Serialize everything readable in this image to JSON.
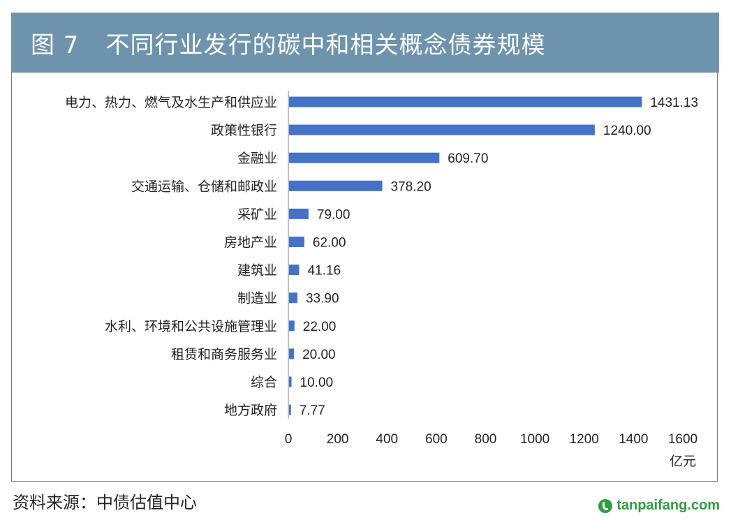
{
  "header": {
    "figure_number": "图 7",
    "title": "不同行业发行的碳中和相关概念债券规模"
  },
  "chart_data": {
    "type": "bar",
    "orientation": "horizontal",
    "categories": [
      "电力、热力、燃气及水生产和供应业",
      "政策性银行",
      "金融业",
      "交通运输、仓储和邮政业",
      "采矿业",
      "房地产业",
      "建筑业",
      "制造业",
      "水利、环境和公共设施管理业",
      "租赁和商务服务业",
      "综合",
      "地方政府"
    ],
    "values": [
      1431.13,
      1240.0,
      609.7,
      378.2,
      79.0,
      62.0,
      41.16,
      33.9,
      22.0,
      20.0,
      10.0,
      7.77
    ],
    "value_labels": [
      "1431.13",
      "1240.00",
      "609.70",
      "378.20",
      "79.00",
      "62.00",
      "41.16",
      "33.90",
      "22.00",
      "20.00",
      "10.00",
      "7.77"
    ],
    "x_ticks": [
      0,
      200,
      400,
      600,
      800,
      1000,
      1200,
      1400,
      1600
    ],
    "xlim": [
      0,
      1600
    ],
    "unit": "亿元",
    "bar_color": "#4472c4",
    "grid": false
  },
  "source": "资料来源：中债估值中心",
  "watermark": "tanpaifang.com"
}
